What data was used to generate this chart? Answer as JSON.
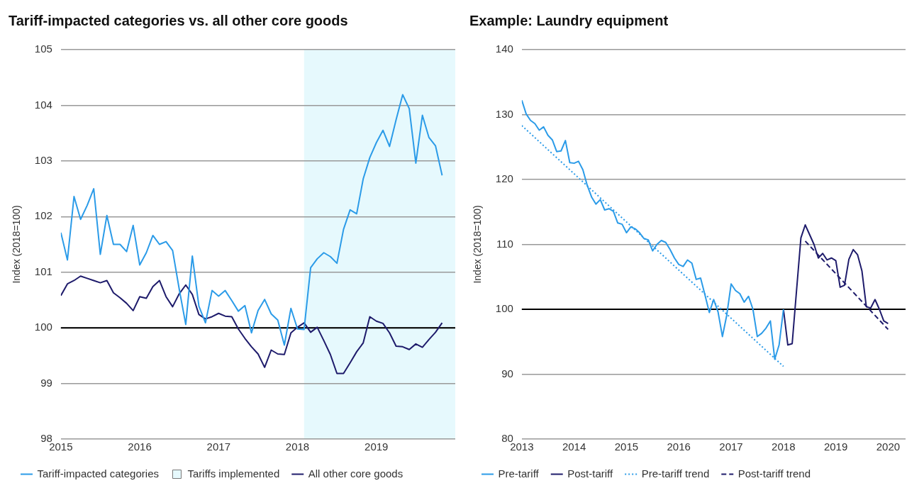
{
  "chart_data": [
    {
      "type": "line",
      "title": "Tariff-impacted categories vs. all other core goods",
      "ylabel": "Index (2018=100)",
      "x": [
        "2015-01",
        "2015-02",
        "2015-03",
        "2015-04",
        "2015-05",
        "2015-06",
        "2015-07",
        "2015-08",
        "2015-09",
        "2015-10",
        "2015-11",
        "2015-12",
        "2016-01",
        "2016-02",
        "2016-03",
        "2016-04",
        "2016-05",
        "2016-06",
        "2016-07",
        "2016-08",
        "2016-09",
        "2016-10",
        "2016-11",
        "2016-12",
        "2017-01",
        "2017-02",
        "2017-03",
        "2017-04",
        "2017-05",
        "2017-06",
        "2017-07",
        "2017-08",
        "2017-09",
        "2017-10",
        "2017-11",
        "2017-12",
        "2018-01",
        "2018-02",
        "2018-03",
        "2018-04",
        "2018-05",
        "2018-06",
        "2018-07",
        "2018-08",
        "2018-09",
        "2018-10",
        "2018-11",
        "2018-12",
        "2019-01",
        "2019-02",
        "2019-03",
        "2019-04",
        "2019-05",
        "2019-06",
        "2019-07",
        "2019-08",
        "2019-09",
        "2019-10",
        "2019-11"
      ],
      "series": [
        {
          "name": "Tariff-impacted categories",
          "color": "#2b9be8",
          "values": [
            101.71,
            101.22,
            102.36,
            101.95,
            102.2,
            102.5,
            101.32,
            102.02,
            101.5,
            101.5,
            101.37,
            101.84,
            101.13,
            101.35,
            101.66,
            101.5,
            101.55,
            101.39,
            100.7,
            100.06,
            101.29,
            100.39,
            100.09,
            100.67,
            100.57,
            100.67,
            100.49,
            100.3,
            100.4,
            99.91,
            100.31,
            100.51,
            100.25,
            100.14,
            99.69,
            100.35,
            99.98,
            99.97,
            101.08,
            101.24,
            101.35,
            101.28,
            101.16,
            101.77,
            102.12,
            102.05,
            102.68,
            103.06,
            103.33,
            103.55,
            103.26,
            103.74,
            104.19,
            103.94,
            102.96,
            103.82,
            103.42,
            103.27,
            102.74
          ]
        },
        {
          "name": "All other core goods",
          "color": "#1e1b6b",
          "values": [
            100.58,
            100.79,
            100.85,
            100.93,
            100.89,
            100.85,
            100.81,
            100.85,
            100.63,
            100.54,
            100.44,
            100.31,
            100.56,
            100.53,
            100.74,
            100.85,
            100.56,
            100.38,
            100.61,
            100.77,
            100.6,
            100.24,
            100.16,
            100.2,
            100.26,
            100.21,
            100.2,
            99.98,
            99.81,
            99.66,
            99.53,
            99.29,
            99.6,
            99.53,
            99.52,
            99.91,
            100.01,
            100.09,
            99.92,
            100.01,
            99.77,
            99.52,
            99.18,
            99.18,
            99.37,
            99.57,
            99.73,
            100.2,
            100.12,
            100.08,
            99.91,
            99.67,
            99.66,
            99.61,
            99.71,
            99.65,
            99.79,
            99.92,
            100.09
          ]
        }
      ],
      "xlim": [
        "2015-01",
        "2020-01"
      ],
      "xticks": [
        "2015",
        "2016",
        "2017",
        "2018",
        "2019"
      ],
      "ylim": [
        98,
        105
      ],
      "yticks": [
        98,
        99,
        100,
        101,
        102,
        103,
        104,
        105
      ],
      "bands": [
        {
          "axis": "x",
          "from": "2018-02",
          "to": "2020-01",
          "label": "Tariffs implemented",
          "color": "#e6f9fd"
        }
      ],
      "ref_lines": [
        {
          "axis": "y",
          "value": 100,
          "color": "#000000"
        }
      ],
      "grid": "y",
      "legend": "bottom"
    },
    {
      "type": "line",
      "title": "Example: Laundry equipment",
      "ylabel": "Index (2018=100)",
      "series": [
        {
          "name": "Pre-tariff",
          "color": "#2b9be8",
          "x": [
            "2013-01",
            "2013-02",
            "2013-03",
            "2013-04",
            "2013-05",
            "2013-06",
            "2013-07",
            "2013-08",
            "2013-09",
            "2013-10",
            "2013-11",
            "2013-12",
            "2014-01",
            "2014-02",
            "2014-03",
            "2014-04",
            "2014-05",
            "2014-06",
            "2014-07",
            "2014-08",
            "2014-09",
            "2014-10",
            "2014-11",
            "2014-12",
            "2015-01",
            "2015-02",
            "2015-03",
            "2015-04",
            "2015-05",
            "2015-06",
            "2015-07",
            "2015-08",
            "2015-09",
            "2015-10",
            "2015-11",
            "2015-12",
            "2016-01",
            "2016-02",
            "2016-03",
            "2016-04",
            "2016-05",
            "2016-06",
            "2016-07",
            "2016-08",
            "2016-09",
            "2016-10",
            "2016-11",
            "2016-12",
            "2017-01",
            "2017-02",
            "2017-03",
            "2017-04",
            "2017-05",
            "2017-06",
            "2017-07",
            "2017-08",
            "2017-09",
            "2017-10",
            "2017-11",
            "2017-12",
            "2018-01"
          ],
          "values": [
            132.2,
            130.1,
            129.1,
            128.6,
            127.6,
            128.1,
            126.8,
            126.1,
            124.3,
            124.4,
            126.0,
            122.6,
            122.5,
            122.8,
            121.5,
            119.1,
            117.3,
            116.2,
            116.9,
            115.3,
            115.5,
            115.1,
            113.3,
            113.1,
            111.8,
            112.7,
            112.4,
            111.8,
            110.9,
            110.7,
            109.0,
            110.0,
            110.6,
            110.3,
            109.2,
            107.9,
            106.9,
            106.6,
            107.6,
            107.1,
            104.6,
            104.8,
            102.2,
            99.5,
            101.5,
            99.6,
            95.8,
            99.1,
            103.9,
            102.9,
            102.4,
            101.1,
            102.0,
            100.0,
            95.8,
            96.3,
            97.1,
            98.2,
            92.3,
            94.5,
            100.0
          ]
        },
        {
          "name": "Post-tariff",
          "color": "#1e1b6b",
          "x": [
            "2018-01",
            "2018-02",
            "2018-03",
            "2018-04",
            "2018-05",
            "2018-06",
            "2018-07",
            "2018-08",
            "2018-09",
            "2018-10",
            "2018-11",
            "2018-12",
            "2019-01",
            "2019-02",
            "2019-03",
            "2019-04",
            "2019-05",
            "2019-06",
            "2019-07",
            "2019-08",
            "2019-09",
            "2019-10",
            "2019-11",
            "2019-12",
            "2020-01"
          ],
          "values": [
            100.0,
            94.5,
            94.7,
            102.9,
            111.0,
            113.0,
            111.5,
            110.0,
            107.9,
            108.6,
            107.6,
            107.9,
            107.5,
            103.4,
            103.7,
            107.7,
            109.2,
            108.4,
            105.9,
            100.4,
            100.2,
            101.5,
            100.0,
            98.2,
            97.8
          ]
        },
        {
          "name": "Pre-tariff trend",
          "color": "#2b9be8",
          "line_style": "dotted",
          "x": [
            "2013-01",
            "2018-01"
          ],
          "values": [
            128.3,
            91.2
          ]
        },
        {
          "name": "Post-tariff trend",
          "color": "#1e1b6b",
          "line_style": "dashed",
          "x": [
            "2018-06",
            "2020-01"
          ],
          "values": [
            110.5,
            96.9
          ]
        }
      ],
      "xlim": [
        "2013-01",
        "2020-05"
      ],
      "xticks": [
        "2013",
        "2014",
        "2015",
        "2016",
        "2017",
        "2018",
        "2019",
        "2020"
      ],
      "ylim": [
        80,
        140
      ],
      "yticks": [
        80,
        90,
        100,
        110,
        120,
        130,
        140
      ],
      "ref_lines": [
        {
          "axis": "y",
          "value": 100,
          "color": "#000000"
        }
      ],
      "grid": "y",
      "legend": "bottom"
    }
  ]
}
